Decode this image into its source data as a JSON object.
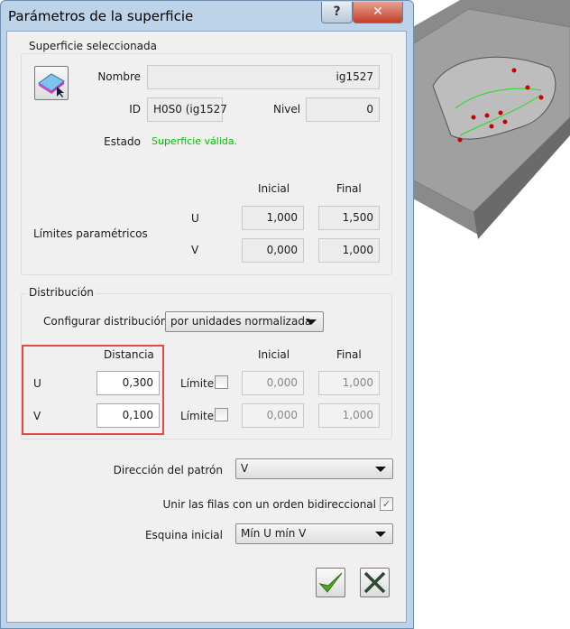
{
  "window": {
    "title": "Parámetros de la superficie",
    "help_label": "?",
    "close_label": "✕"
  },
  "surface": {
    "group_label": "Superficie seleccionada",
    "nombre_label": "Nombre",
    "nombre_value": "ig1527",
    "id_label": "ID",
    "id_value": "H0S0 (ig1527",
    "nivel_label": "Nivel",
    "nivel_value": "0",
    "estado_label": "Estado",
    "estado_value": "Superficie válida.",
    "estado_color": "#00c000",
    "limits": {
      "label": "Límites paramétricos",
      "inicial_header": "Inicial",
      "final_header": "Final",
      "u_label": "U",
      "u_inicial": "1,000",
      "u_final": "1,500",
      "v_label": "V",
      "v_inicial": "0,000",
      "v_final": "1,000"
    }
  },
  "distribution": {
    "group_label": "Distribución",
    "config_label": "Configurar distribución",
    "config_value": "por unidades normalizada",
    "distancia_header": "Distancia",
    "inicial_header": "Inicial",
    "final_header": "Final",
    "u_label": "U",
    "u_distancia": "0,300",
    "u_limite_label": "Límite",
    "u_limite_checked": false,
    "u_inicial": "0,000",
    "u_final": "1,000",
    "v_label": "V",
    "v_distancia": "0,100",
    "v_limite_label": "Límite",
    "v_limite_checked": false,
    "v_inicial": "0,000",
    "v_final": "1,000",
    "highlight_color": "#e8474a"
  },
  "pattern": {
    "direction_label": "Dirección del patrón",
    "direction_value": "V",
    "bidir_label": "Unir las filas con un orden bidireccional",
    "bidir_checked": true,
    "bidir_mark": "✓",
    "corner_label": "Esquina inicial",
    "corner_value": "Mín U mín V"
  },
  "buttons": {
    "ok_icon": "checkmark-icon",
    "cancel_icon": "x-icon"
  }
}
